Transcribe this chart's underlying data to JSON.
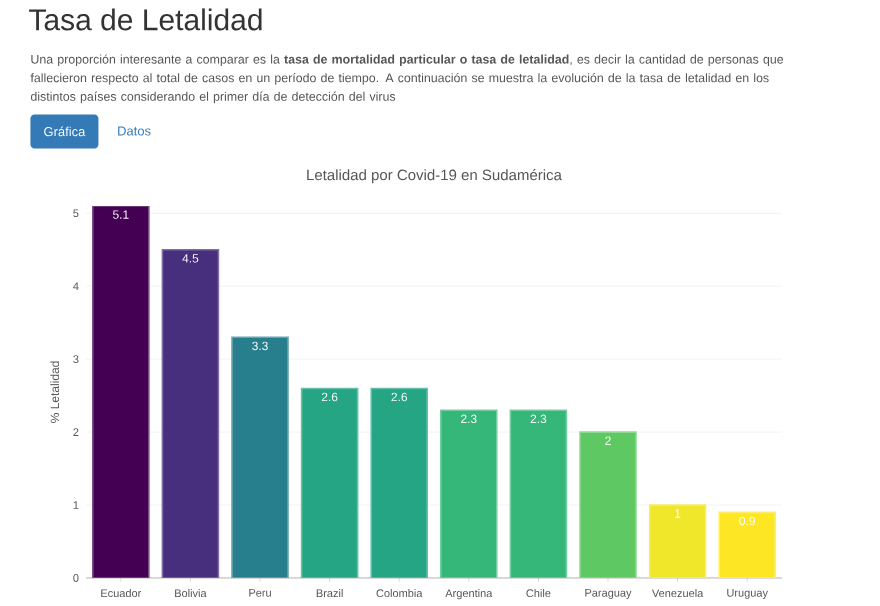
{
  "chart_data": {
    "type": "bar",
    "title": "Letalidad por Covid-19 en Sudamérica",
    "ylabel": "% Letalidad",
    "categories": [
      "Ecuador",
      "Bolivia",
      "Peru",
      "Brazil",
      "Colombia",
      "Argentina",
      "Chile",
      "Paraguay",
      "Venezuela",
      "Uruguay"
    ],
    "values": [
      5.1,
      4.5,
      3.3,
      2.6,
      2.6,
      2.3,
      2.3,
      2,
      1,
      0.9
    ],
    "colors": [
      "#440154",
      "#472f7d",
      "#277f8e",
      "#25a584",
      "#25a584",
      "#35b779",
      "#35b779",
      "#5ec962",
      "#f0e62a",
      "#fde725"
    ],
    "ylim": [
      0,
      5.1
    ],
    "yticks": [
      0,
      1,
      2,
      3,
      4,
      5
    ],
    "grid": "y",
    "data_labels": true,
    "annotations": [
      "Tasa de Letalidad",
      "Una proporción interesante a comparar es la **tasa de mortalidad particular o tasa de letalidad**, es decir la cantidad de personas que fallecieron respecto al total de casos en un período de tiempo. A continuación se muestra la evolución de la tasa de letalidad en los distintos países considerando el primer día de detección del virus",
      "Gráfica",
      "Datos"
    ]
  }
}
